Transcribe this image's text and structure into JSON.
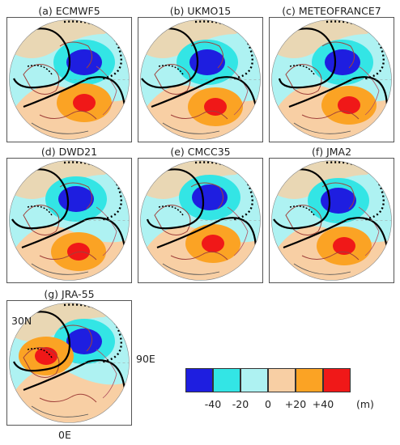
{
  "panels": [
    {
      "title": "(a) ECMWF5"
    },
    {
      "title": "(b) UKMO15"
    },
    {
      "title": "(c) METEOFRANCE7"
    },
    {
      "title": "(d) DWD21"
    },
    {
      "title": "(e) CMCC35"
    },
    {
      "title": "(f) JMA2"
    },
    {
      "title": "(g) JRA-55"
    }
  ],
  "axis_labels": {
    "lat": "30N",
    "lon_east": "90E",
    "lon_zero": "0E"
  },
  "colorbar": {
    "colors": [
      "#1e1ee0",
      "#33e5e5",
      "#aef2f2",
      "#f8cfa4",
      "#fba324",
      "#f01818"
    ],
    "tick_labels": [
      "-40",
      "-20",
      "0",
      "+20",
      "+40"
    ],
    "unit": "(m)"
  }
}
